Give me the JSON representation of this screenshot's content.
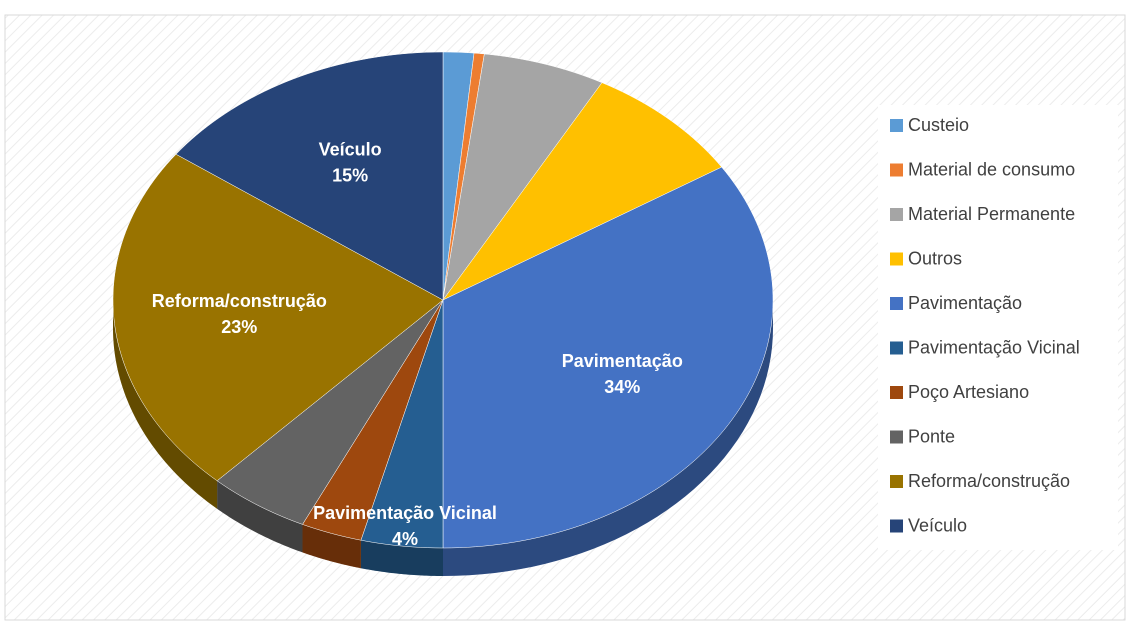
{
  "chart_data": {
    "type": "pie",
    "categories": [
      "Custeio",
      "Material de consumo",
      "Material Permanente",
      "Outros",
      "Pavimentação",
      "Pavimentação Vicinal",
      "Poço Artesiano",
      "Ponte",
      "Reforma/construção",
      "Veículo"
    ],
    "values": [
      1.5,
      0.5,
      6,
      8,
      34,
      4,
      3,
      5,
      23,
      15
    ],
    "value_labels": [
      null,
      null,
      null,
      null,
      "34%",
      "4%",
      null,
      null,
      "23%",
      "15%"
    ],
    "colors": [
      "#5b9bd5",
      "#ed7d31",
      "#a5a5a5",
      "#ffc000",
      "#4472c4",
      "#255e91",
      "#9e480e",
      "#636363",
      "#997300",
      "#264478"
    ],
    "legend": "right"
  }
}
